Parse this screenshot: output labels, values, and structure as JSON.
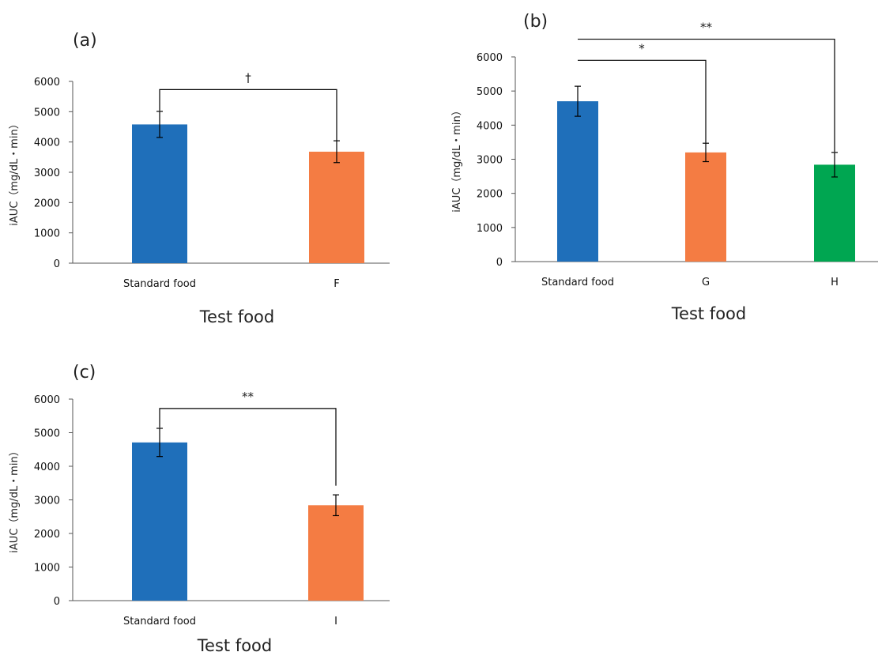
{
  "chart_data": [
    {
      "type": "bar",
      "panel_label": "(a)",
      "categories": [
        "Standard food",
        "F"
      ],
      "values": [
        4580,
        3680
      ],
      "errors": [
        430,
        360
      ],
      "colors": [
        "#1F6FBA",
        "#F47C43"
      ],
      "xlabel": "Test food",
      "ylabel": "iAUC（mg/dL・min）",
      "ylim": [
        0,
        6000
      ],
      "yticks": [
        0,
        1000,
        2000,
        3000,
        4000,
        5000,
        6000
      ],
      "grid": false,
      "significance": [
        {
          "from": 0,
          "to": 1,
          "label": "†",
          "top_value": 5730,
          "end_values": [
            5030,
            4050
          ]
        }
      ]
    },
    {
      "type": "bar",
      "panel_label": "(b)",
      "categories": [
        "Standard food",
        "G",
        "H"
      ],
      "values": [
        4700,
        3200,
        2840
      ],
      "errors": [
        440,
        270,
        360
      ],
      "colors": [
        "#1F6FBA",
        "#F47C43",
        "#00A651"
      ],
      "xlabel": "Test food",
      "ylabel": "iAUC（mg/dL・min）",
      "ylim": [
        0,
        6000
      ],
      "yticks": [
        0,
        1000,
        2000,
        3000,
        4000,
        5000,
        6000
      ],
      "grid": false,
      "significance": [
        {
          "from": 0,
          "to": 1,
          "label": "*",
          "top_value": 5900,
          "end_values": [
            5900,
            3480
          ]
        },
        {
          "from": 0,
          "to": 2,
          "label": "**",
          "top_value": 6520,
          "end_values": [
            6520,
            3220
          ]
        }
      ]
    },
    {
      "type": "bar",
      "panel_label": "(c)",
      "categories": [
        "Standard food",
        "I"
      ],
      "values": [
        4710,
        2840
      ],
      "errors": [
        420,
        310
      ],
      "colors": [
        "#1F6FBA",
        "#F47C43"
      ],
      "xlabel": "Test food",
      "ylabel": "iAUC（mg/dL・min）",
      "ylim": [
        0,
        6000
      ],
      "yticks": [
        0,
        1000,
        2000,
        3000,
        4000,
        5000,
        6000
      ],
      "grid": false,
      "significance": [
        {
          "from": 0,
          "to": 1,
          "label": "**",
          "top_value": 5720,
          "end_values": [
            5150,
            3420
          ]
        }
      ]
    }
  ]
}
